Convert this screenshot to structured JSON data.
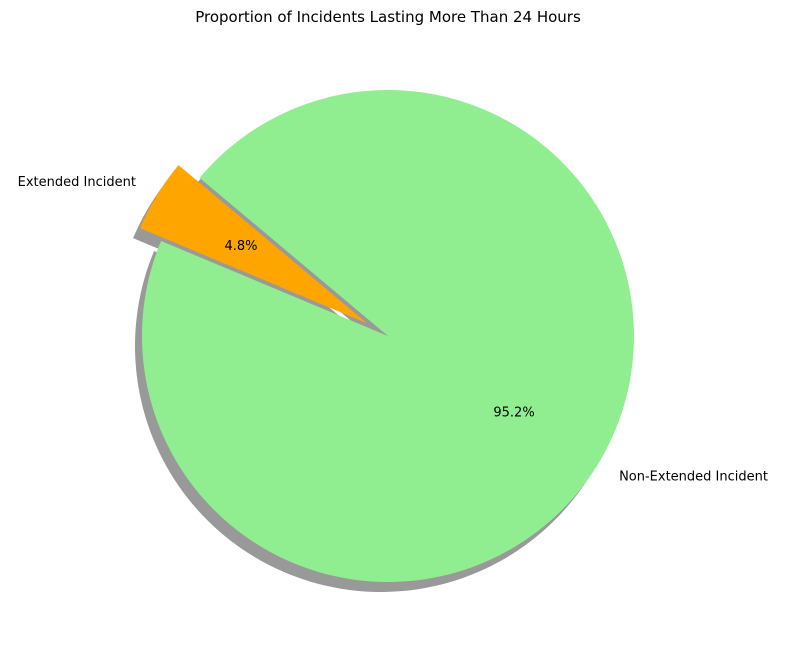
{
  "chart_data": {
    "type": "pie",
    "title": "Proportion of Incidents Lasting More Than 24 Hours",
    "categories": [
      "Extended Incident",
      "Non-Extended Incident"
    ],
    "values": [
      4.8,
      95.2
    ],
    "value_labels": [
      "4.8%",
      "95.2%"
    ],
    "colors": [
      "#ffa500",
      "#90ee90"
    ],
    "explode": [
      0.1,
      0
    ],
    "shadow": true,
    "legend": "none"
  }
}
